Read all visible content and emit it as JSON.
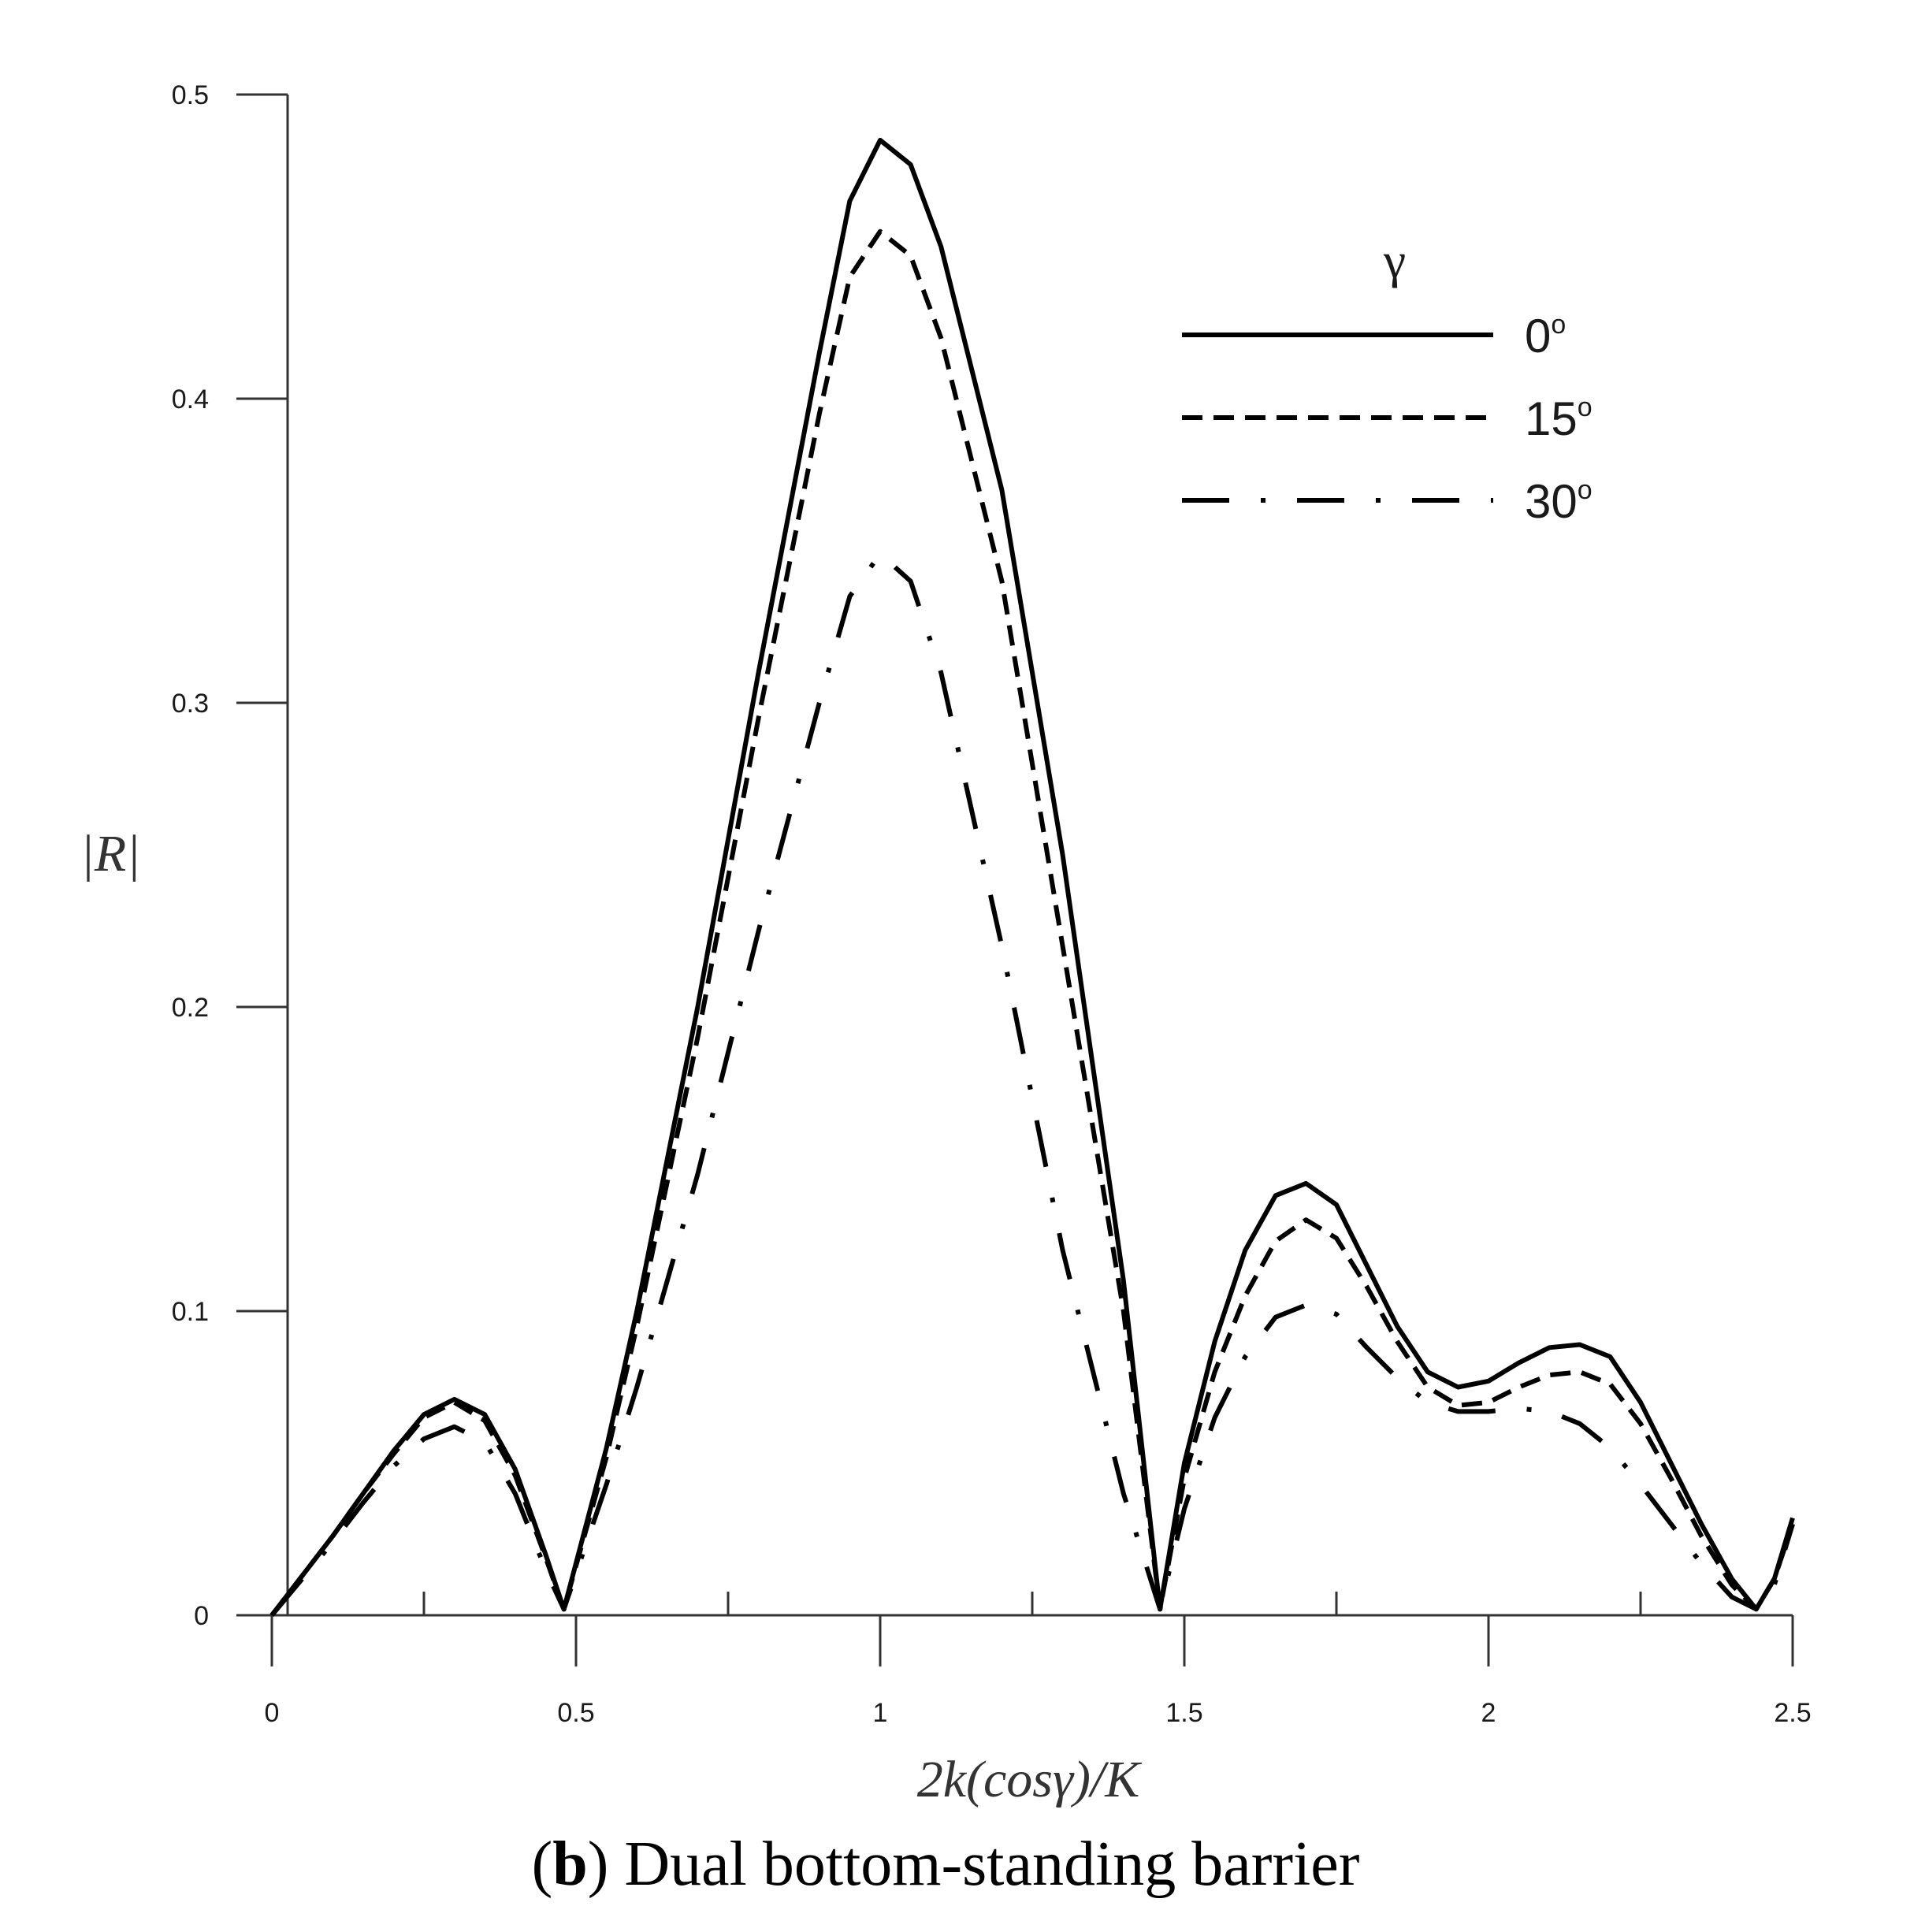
{
  "chart_data": {
    "type": "line",
    "xlabel": "2k(cosγ)/K",
    "ylabel": "|R|",
    "xlim": [
      0,
      2.5
    ],
    "ylim": [
      0,
      0.5
    ],
    "x_ticks": [
      "0",
      "0.5",
      "1",
      "1.5",
      "2",
      "2.5"
    ],
    "y_ticks": [
      "0",
      "0.1",
      "0.2",
      "0.3",
      "0.4",
      "0.5"
    ],
    "grid": false,
    "legend": {
      "title": "γ",
      "placement": "top-right"
    },
    "series": [
      {
        "name": "0°",
        "label": "0",
        "line_style": "solid",
        "points": [
          [
            0,
            0
          ],
          [
            0.05,
            0.013
          ],
          [
            0.1,
            0.026
          ],
          [
            0.15,
            0.04
          ],
          [
            0.2,
            0.054
          ],
          [
            0.25,
            0.066
          ],
          [
            0.3,
            0.071
          ],
          [
            0.35,
            0.066
          ],
          [
            0.4,
            0.048
          ],
          [
            0.45,
            0.02
          ],
          [
            0.48,
            0.002
          ],
          [
            0.55,
            0.055
          ],
          [
            0.6,
            0.1
          ],
          [
            0.7,
            0.2
          ],
          [
            0.8,
            0.31
          ],
          [
            0.9,
            0.415
          ],
          [
            0.95,
            0.465
          ],
          [
            1.0,
            0.485
          ],
          [
            1.05,
            0.477
          ],
          [
            1.1,
            0.45
          ],
          [
            1.2,
            0.37
          ],
          [
            1.3,
            0.25
          ],
          [
            1.4,
            0.11
          ],
          [
            1.46,
            0.002
          ],
          [
            1.5,
            0.05
          ],
          [
            1.55,
            0.09
          ],
          [
            1.6,
            0.12
          ],
          [
            1.65,
            0.138
          ],
          [
            1.7,
            0.142
          ],
          [
            1.75,
            0.135
          ],
          [
            1.8,
            0.115
          ],
          [
            1.85,
            0.095
          ],
          [
            1.9,
            0.08
          ],
          [
            1.95,
            0.075
          ],
          [
            2.0,
            0.077
          ],
          [
            2.05,
            0.083
          ],
          [
            2.1,
            0.088
          ],
          [
            2.15,
            0.089
          ],
          [
            2.2,
            0.085
          ],
          [
            2.25,
            0.07
          ],
          [
            2.3,
            0.05
          ],
          [
            2.35,
            0.03
          ],
          [
            2.4,
            0.012
          ],
          [
            2.44,
            0.002
          ],
          [
            2.47,
            0.012
          ],
          [
            2.5,
            0.032
          ]
        ]
      },
      {
        "name": "15°",
        "label": "15",
        "line_style": "dashed",
        "points": [
          [
            0,
            0
          ],
          [
            0.05,
            0.013
          ],
          [
            0.1,
            0.026
          ],
          [
            0.15,
            0.04
          ],
          [
            0.2,
            0.053
          ],
          [
            0.25,
            0.065
          ],
          [
            0.3,
            0.07
          ],
          [
            0.35,
            0.064
          ],
          [
            0.4,
            0.046
          ],
          [
            0.45,
            0.019
          ],
          [
            0.48,
            0.002
          ],
          [
            0.55,
            0.052
          ],
          [
            0.6,
            0.095
          ],
          [
            0.7,
            0.19
          ],
          [
            0.8,
            0.295
          ],
          [
            0.9,
            0.395
          ],
          [
            0.95,
            0.44
          ],
          [
            1.0,
            0.455
          ],
          [
            1.05,
            0.447
          ],
          [
            1.1,
            0.42
          ],
          [
            1.2,
            0.34
          ],
          [
            1.3,
            0.22
          ],
          [
            1.4,
            0.1
          ],
          [
            1.46,
            0.002
          ],
          [
            1.5,
            0.045
          ],
          [
            1.55,
            0.08
          ],
          [
            1.6,
            0.105
          ],
          [
            1.65,
            0.123
          ],
          [
            1.7,
            0.13
          ],
          [
            1.75,
            0.124
          ],
          [
            1.8,
            0.108
          ],
          [
            1.85,
            0.09
          ],
          [
            1.9,
            0.075
          ],
          [
            1.95,
            0.069
          ],
          [
            2.0,
            0.07
          ],
          [
            2.05,
            0.075
          ],
          [
            2.1,
            0.079
          ],
          [
            2.15,
            0.08
          ],
          [
            2.2,
            0.076
          ],
          [
            2.25,
            0.063
          ],
          [
            2.3,
            0.045
          ],
          [
            2.35,
            0.026
          ],
          [
            2.4,
            0.01
          ],
          [
            2.44,
            0.002
          ],
          [
            2.47,
            0.012
          ],
          [
            2.5,
            0.03
          ]
        ]
      },
      {
        "name": "30°",
        "label": "30",
        "line_style": "dash-dot",
        "points": [
          [
            0,
            0
          ],
          [
            0.05,
            0.012
          ],
          [
            0.1,
            0.024
          ],
          [
            0.15,
            0.037
          ],
          [
            0.2,
            0.049
          ],
          [
            0.25,
            0.058
          ],
          [
            0.3,
            0.062
          ],
          [
            0.35,
            0.057
          ],
          [
            0.4,
            0.04
          ],
          [
            0.45,
            0.015
          ],
          [
            0.48,
            0.002
          ],
          [
            0.55,
            0.043
          ],
          [
            0.6,
            0.075
          ],
          [
            0.7,
            0.145
          ],
          [
            0.8,
            0.225
          ],
          [
            0.9,
            0.3
          ],
          [
            0.95,
            0.335
          ],
          [
            1.0,
            0.349
          ],
          [
            1.05,
            0.34
          ],
          [
            1.1,
            0.31
          ],
          [
            1.2,
            0.22
          ],
          [
            1.3,
            0.12
          ],
          [
            1.4,
            0.04
          ],
          [
            1.46,
            0.002
          ],
          [
            1.5,
            0.035
          ],
          [
            1.55,
            0.065
          ],
          [
            1.6,
            0.085
          ],
          [
            1.65,
            0.098
          ],
          [
            1.7,
            0.102
          ],
          [
            1.75,
            0.099
          ],
          [
            1.8,
            0.088
          ],
          [
            1.85,
            0.078
          ],
          [
            1.9,
            0.07
          ],
          [
            1.95,
            0.067
          ],
          [
            2.0,
            0.067
          ],
          [
            2.05,
            0.068
          ],
          [
            2.1,
            0.067
          ],
          [
            2.15,
            0.063
          ],
          [
            2.2,
            0.055
          ],
          [
            2.25,
            0.043
          ],
          [
            2.3,
            0.03
          ],
          [
            2.35,
            0.017
          ],
          [
            2.4,
            0.006
          ],
          [
            2.44,
            0.002
          ],
          [
            2.47,
            0.01
          ],
          [
            2.5,
            0.03
          ]
        ]
      }
    ]
  },
  "caption": {
    "open": "(",
    "bold": "b",
    "rest": ") Dual bottom-standing barrier"
  }
}
